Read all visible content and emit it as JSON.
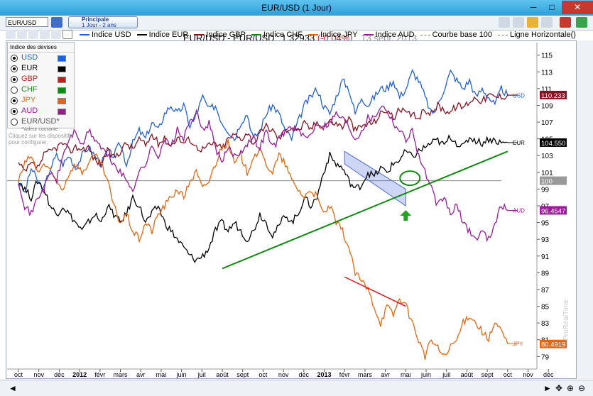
{
  "window": {
    "title": "EUR/USD (1 Jour)",
    "min_label": "─",
    "max_label": "□",
    "close_label": "✕"
  },
  "toolbar": {
    "symbol": "EUR/USD",
    "mode_title": "Principale",
    "mode_sub": "1 Jour - 2 ans",
    "icons": [
      "bar-chart-icon",
      "line-chart-icon",
      "candles-icon",
      "indicator-icon",
      "text-icon",
      "rectangle-icon"
    ]
  },
  "header": {
    "instrument": "EUR/USD - EUR/USD",
    "price": "1.32933",
    "change": "(-0,04%)",
    "date": "13 sept. 2013"
  },
  "legend": [
    {
      "label": "Indice USD",
      "color": "#1f5fe0"
    },
    {
      "label": "Indice EUR",
      "color": "#000000"
    },
    {
      "label": "Indice GBP",
      "color": "#8b1020"
    },
    {
      "label": "Indice CHF",
      "color": "#118a11"
    },
    {
      "label": "Indice JPY",
      "color": "#e8650e"
    },
    {
      "label": "Indice AUD",
      "color": "#9a1a9a"
    },
    {
      "label": "Courbe base 100",
      "color": "#777777"
    },
    {
      "label": "Ligne Horizontale()",
      "color": "#777777"
    }
  ],
  "panel": {
    "title": "Indice des devises",
    "items": [
      {
        "label": "USD",
        "color": "#1f5fe0",
        "checked": true
      },
      {
        "label": "EUR",
        "color": "#000000",
        "checked": true
      },
      {
        "label": "GBP",
        "color": "#c81a1a",
        "checked": true
      },
      {
        "label": "CHF",
        "color": "#118a11",
        "checked": false
      },
      {
        "label": "JPY",
        "color": "#e8650e",
        "checked": true
      },
      {
        "label": "AUD",
        "color": "#9a1a9a",
        "checked": true
      },
      {
        "label": "EUR/USD*",
        "color": "#555555",
        "checked": false
      }
    ],
    "note": "*Valeur courante",
    "ghost": "Cliquez sur les dispositifs pour configurer."
  },
  "chart_data": {
    "type": "line",
    "x_ticks": [
      "oct",
      "nov",
      "déc",
      "2012",
      "févr",
      "mars",
      "avr",
      "mai",
      "juin",
      "juil",
      "août",
      "sept",
      "oct",
      "nov",
      "déc",
      "2013",
      "févr",
      "mars",
      "avr",
      "mai",
      "juin",
      "juil",
      "août",
      "sept",
      "oct",
      "nov",
      "déc"
    ],
    "y_ticks": [
      79,
      81,
      83,
      85,
      87,
      89,
      91,
      93,
      95,
      97,
      99,
      101,
      103,
      105,
      107,
      109,
      111,
      113,
      115
    ],
    "ylim": [
      77.5,
      116.5
    ],
    "series": [
      {
        "name": "Indice USD",
        "color": "#1f5fe0",
        "label": "USD",
        "last": "110.233",
        "values": [
          100,
          98.5,
          101.5,
          100,
          99,
          101.5,
          103,
          102,
          103,
          101.5,
          103,
          104,
          103,
          102,
          103.5,
          103,
          104.5,
          102,
          104.5,
          106,
          105,
          107,
          106,
          108,
          109,
          108,
          109,
          106.5,
          108,
          110,
          108.5,
          109,
          107,
          106,
          105,
          107,
          108,
          105,
          106,
          108,
          109,
          108,
          106,
          105,
          107,
          109,
          110,
          111,
          109,
          108,
          110,
          112,
          111,
          108,
          110,
          109,
          110,
          111,
          111,
          112,
          110,
          111,
          113,
          112,
          110,
          108,
          109,
          111,
          113,
          112,
          111,
          112,
          110,
          111,
          110,
          109,
          111,
          110.2
        ]
      },
      {
        "name": "Indice EUR",
        "color": "#000000",
        "label": "EUR",
        "last": "104.550",
        "values": [
          100,
          99,
          98,
          100,
          99,
          97,
          96,
          97,
          96,
          95,
          94,
          95,
          96,
          95,
          97,
          96,
          95,
          96,
          98,
          97,
          95,
          96,
          97,
          95,
          94,
          93,
          92,
          91,
          90.5,
          91,
          92,
          94,
          95,
          94,
          95,
          94,
          93,
          94,
          96,
          95,
          93.5,
          94.5,
          96,
          95,
          96,
          98,
          97,
          98,
          101,
          103,
          102,
          101.5,
          100,
          99,
          99.5,
          101,
          100.5,
          101.5,
          101,
          102,
          102.5,
          103.5,
          102.8,
          103.5,
          104,
          104.5,
          104.8,
          104.2,
          105.3,
          104.5,
          104,
          105.2,
          104.8,
          104.5,
          105,
          104.8,
          104.5,
          104.55
        ]
      },
      {
        "name": "Indice GBP",
        "color": "#8b1020",
        "label": "GBP",
        "last": "110.233",
        "values": [
          102,
          101,
          102,
          101.5,
          103,
          103.5,
          104,
          104.5,
          103.5,
          104,
          103.8,
          104,
          102.5,
          102,
          103.5,
          102.8,
          103.5,
          104.5,
          103.8,
          105,
          104.2,
          105.5,
          104.5,
          105,
          104.2,
          105.2,
          104.5,
          105,
          104,
          103.8,
          104.2,
          104.5,
          103.8,
          105,
          105.5,
          105,
          105.8,
          104.5,
          105.5,
          106.5,
          106,
          105,
          106,
          106.5,
          106,
          106.8,
          106.2,
          107,
          106.5,
          107.2,
          106.8,
          106.5,
          107.5,
          106,
          106.5,
          106.8,
          107,
          108,
          108.5,
          107.5,
          108.5,
          108,
          107.8,
          107.5,
          108.5,
          108,
          109,
          108.5,
          108.2,
          109,
          108.8,
          109.5,
          110,
          109.5,
          110.2,
          110,
          110.1,
          110.23
        ]
      },
      {
        "name": "Indice JPY",
        "color": "#e8650e",
        "label": "JPY",
        "last": "80.4919",
        "values": [
          100,
          102,
          103,
          101,
          102,
          101,
          100,
          99,
          101,
          102,
          101,
          102,
          103,
          102,
          100,
          97,
          95,
          96,
          94,
          93,
          95,
          94,
          96,
          97,
          98,
          99,
          98,
          100,
          101,
          99,
          100,
          102,
          104,
          104.5,
          102,
          103,
          101,
          103,
          103.5,
          102,
          101,
          103,
          102,
          100,
          99,
          98,
          99,
          98,
          96,
          97,
          95,
          94,
          92,
          89,
          88,
          87,
          85,
          83,
          85,
          84,
          86,
          85,
          83,
          81,
          79,
          81,
          80,
          79,
          80,
          81,
          83,
          84,
          83,
          82,
          81,
          83,
          82,
          80.5
        ]
      },
      {
        "name": "Indice AUD",
        "color": "#9a1a9a",
        "label": "AUD",
        "last": "96.4547",
        "values": [
          100,
          97,
          96,
          98,
          99,
          101,
          100,
          103,
          105,
          106,
          104,
          106,
          105,
          104,
          103,
          102,
          101,
          100,
          99,
          101,
          102,
          104,
          103,
          105,
          104,
          106,
          105,
          107,
          108,
          106,
          107,
          104,
          102,
          104,
          103,
          103.5,
          104.5,
          105,
          104,
          106,
          104,
          105,
          106,
          106.5,
          106,
          105,
          105.5,
          107,
          106.5,
          107,
          108,
          107.5,
          106.5,
          105,
          106,
          107.5,
          107.5,
          109,
          108.5,
          107,
          106,
          105,
          106,
          103,
          101,
          99,
          97,
          98,
          96,
          97,
          95,
          94,
          93,
          94,
          93,
          95,
          97,
          96.45
        ]
      }
    ],
    "right_labels": [
      "USD",
      "EUR",
      "AUD",
      "JPY"
    ],
    "price_tags": [
      {
        "text": "110.233",
        "color": "#8b1020"
      },
      {
        "text": "104.550",
        "color": "#000000"
      },
      {
        "text": "100",
        "color": "#999999"
      },
      {
        "text": "96.4547",
        "color": "#9a1a9a"
      },
      {
        "text": "80.4919",
        "color": "#e8650e"
      }
    ],
    "base_line": 100,
    "trendline_green": {
      "color": "#118a11",
      "from": {
        "month": 10,
        "value": 89.5
      },
      "to": {
        "month": 24,
        "value": 103.5
      }
    },
    "trendline_red": {
      "color": "#e8101a",
      "from": {
        "month": 16,
        "value": 88.5
      },
      "to": {
        "month": 19,
        "value": 85
      }
    },
    "channel_blue": {
      "from": {
        "month": 16,
        "top": 103.5,
        "bottom": 102
      },
      "to": {
        "month": 19,
        "top": 99,
        "bottom": 97
      }
    },
    "circle_marker": {
      "month": 19,
      "value": 100.3
    },
    "arrow_marker": {
      "month": 19,
      "value": 95.8
    },
    "watermark": "ProRealTime"
  }
}
